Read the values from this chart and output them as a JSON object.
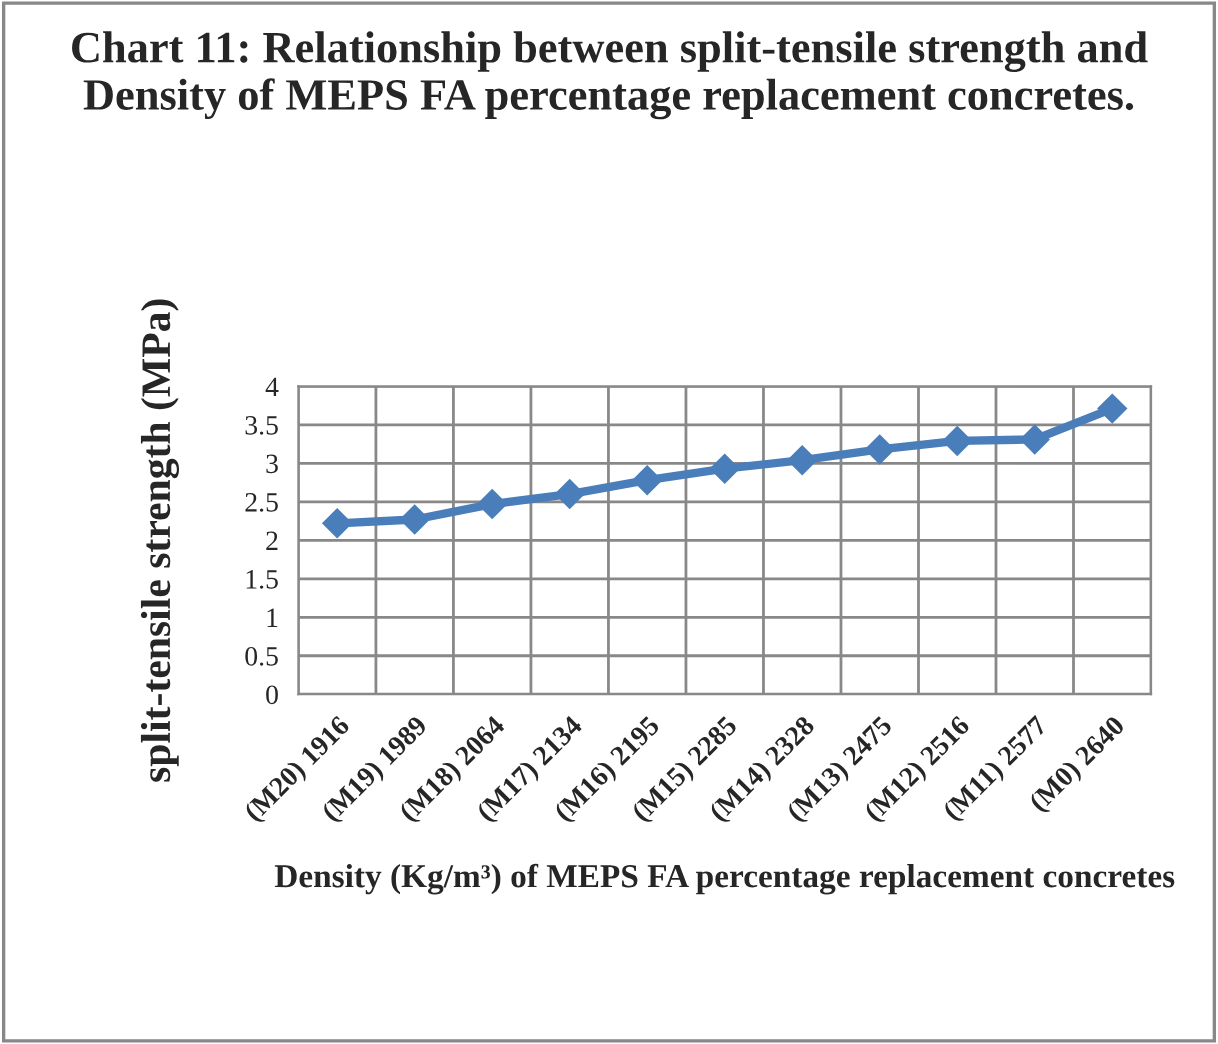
{
  "chart_data": {
    "type": "line",
    "title": "Chart 11: Relationship between split-tensile strength and Density of MEPS FA percentage replacement concretes.",
    "xlabel": "Density (Kg/m³) of MEPS FA percentage replacement concretes",
    "ylabel": "split-tensile strength (MPa)",
    "categories": [
      "(M20) 1916",
      "(M19) 1989",
      "(M18) 2064",
      "(M17) 2134",
      "(M16) 2195",
      "(M15) 2285",
      "(M14) 2328",
      "(M13) 2475",
      "(M12) 2516",
      "(M11) 2577",
      "(M0) 2640"
    ],
    "series": [
      {
        "color": "#4a7ebb",
        "values": [
          2.22,
          2.27,
          2.47,
          2.6,
          2.78,
          2.93,
          3.04,
          3.18,
          3.29,
          3.31,
          3.71
        ]
      }
    ],
    "ylim": [
      0,
      4
    ],
    "yticks": [
      0,
      0.5,
      1,
      1.5,
      2,
      2.5,
      3,
      3.5,
      4
    ],
    "grid": true,
    "marker": "diamond",
    "line_style": "solid"
  }
}
